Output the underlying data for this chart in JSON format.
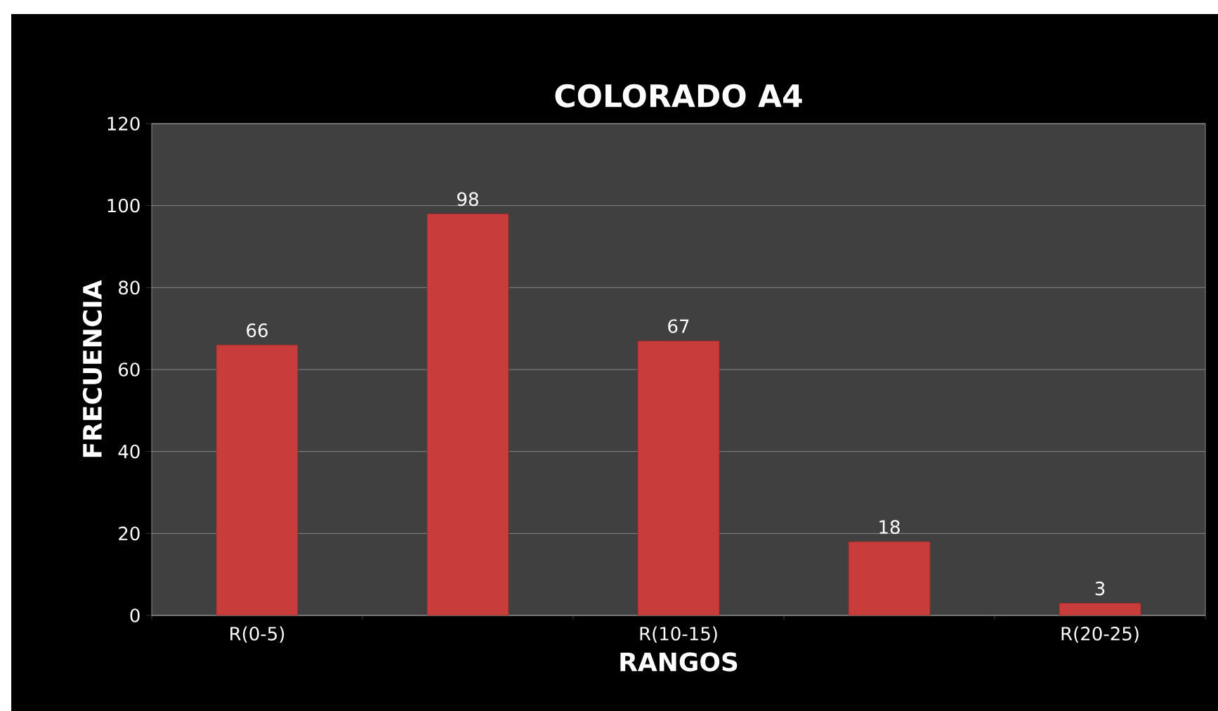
{
  "chart_data": {
    "type": "bar",
    "title": "COLORADO A4",
    "xlabel": "RANGOS",
    "ylabel": "FRECUENCIA",
    "categories": [
      "R(0-5)",
      null,
      "R(10-15)",
      null,
      "R(20-25)"
    ],
    "values": [
      66,
      98,
      67,
      18,
      3
    ],
    "color": "#c93c3c",
    "ylim": [
      0,
      120
    ],
    "yticks": [
      0,
      20,
      40,
      60,
      80,
      100,
      120
    ],
    "grid": "y",
    "data_labels": true
  }
}
